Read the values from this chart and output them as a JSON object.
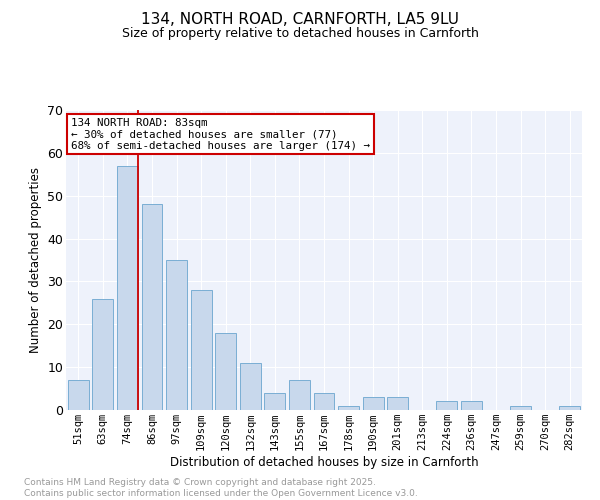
{
  "title1": "134, NORTH ROAD, CARNFORTH, LA5 9LU",
  "title2": "Size of property relative to detached houses in Carnforth",
  "xlabel": "Distribution of detached houses by size in Carnforth",
  "ylabel": "Number of detached properties",
  "categories": [
    "51sqm",
    "63sqm",
    "74sqm",
    "86sqm",
    "97sqm",
    "109sqm",
    "120sqm",
    "132sqm",
    "143sqm",
    "155sqm",
    "167sqm",
    "178sqm",
    "190sqm",
    "201sqm",
    "213sqm",
    "224sqm",
    "236sqm",
    "247sqm",
    "259sqm",
    "270sqm",
    "282sqm"
  ],
  "values": [
    7,
    26,
    57,
    48,
    35,
    28,
    18,
    11,
    4,
    7,
    4,
    1,
    3,
    3,
    0,
    2,
    2,
    0,
    1,
    0,
    1
  ],
  "bar_color": "#c8d8ec",
  "bar_edge_color": "#7aaed4",
  "background_color": "#eef2fb",
  "grid_color": "#ffffff",
  "vline_color": "#cc0000",
  "annotation_text": "134 NORTH ROAD: 83sqm\n← 30% of detached houses are smaller (77)\n68% of semi-detached houses are larger (174) →",
  "annotation_box_edge_color": "#cc0000",
  "ylim": [
    0,
    70
  ],
  "yticks": [
    0,
    10,
    20,
    30,
    40,
    50,
    60,
    70
  ],
  "footer_text": "Contains HM Land Registry data © Crown copyright and database right 2025.\nContains public sector information licensed under the Open Government Licence v3.0.",
  "footer_color": "#999999"
}
